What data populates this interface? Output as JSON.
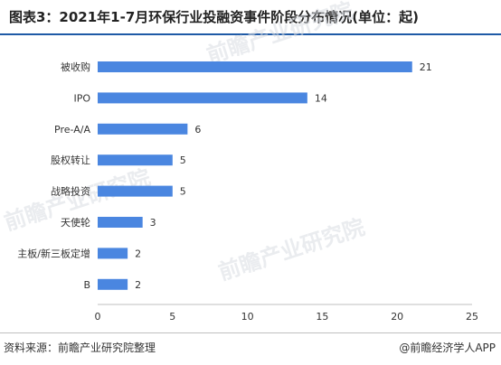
{
  "title": "图表3：2021年1-7月环保行业投融资事件阶段分布情况(单位：起)",
  "footer": {
    "source": "资料来源：前瞻产业研究院整理",
    "brand": "@前瞻经济学人APP"
  },
  "watermark": "前瞻产业研究院",
  "colors": {
    "bar": "#4a86e0",
    "axis": "#bfbfbf",
    "title_rule": "#1f5aa6"
  },
  "chart_data": {
    "type": "bar",
    "orientation": "horizontal",
    "title": "图表3：2021年1-7月环保行业投融资事件阶段分布情况(单位：起)",
    "categories": [
      "被收购",
      "IPO",
      "Pre-A/A",
      "股权转让",
      "战略投资",
      "天使轮",
      "主板/新三板定增",
      "B"
    ],
    "values": [
      21,
      14,
      6,
      5,
      5,
      3,
      2,
      2
    ],
    "xlim": [
      0,
      25
    ],
    "xticks": [
      0,
      5,
      10,
      15,
      20,
      25
    ],
    "grid": false,
    "legend": "none",
    "data_labels": true
  }
}
